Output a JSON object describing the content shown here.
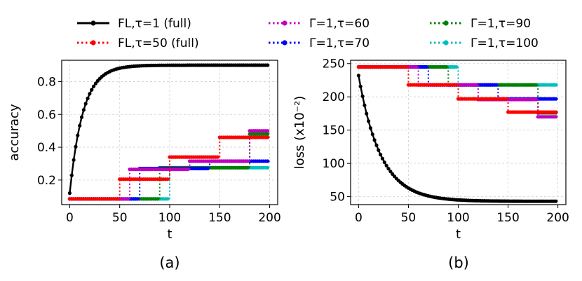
{
  "legend": [
    {
      "label": "FL,τ=1 (full)",
      "color": "#000000",
      "dash": "solid"
    },
    {
      "label": "FL,τ=50 (full)",
      "color": "#ff0000",
      "dash": "dotted"
    },
    {
      "label": "Γ=1,τ=60",
      "color": "#bf00bf",
      "dash": "dotted"
    },
    {
      "label": "Γ=1,τ=70",
      "color": "#0000ff",
      "dash": "dotted"
    },
    {
      "label": "Γ=1,τ=90",
      "color": "#007f00",
      "dash": "dotted"
    },
    {
      "label": "Γ=1,τ=100",
      "color": "#00bfbf",
      "dash": "dotted"
    }
  ],
  "chart_data": [
    {
      "type": "line",
      "caption": "(a)",
      "xlabel": "t",
      "ylabel": "accuracy",
      "xlim": [
        -8,
        208
      ],
      "ylim": [
        0.05,
        0.93
      ],
      "xticks": [
        0,
        50,
        100,
        150,
        200
      ],
      "yticks": [
        0.2,
        0.4,
        0.6,
        0.8
      ],
      "ytick_labels": [
        "0.2",
        "0.4",
        "0.6",
        "0.8"
      ],
      "grid": true,
      "series": [
        {
          "name": "FL,τ=1 (full)",
          "kind": "curve",
          "start": 0.12,
          "plateau": 0.9,
          "rate": 0.075
        },
        {
          "name": "FL,τ=50 (full)",
          "kind": "step",
          "breaks": [
            0,
            50,
            100,
            150,
            200
          ],
          "levels": [
            0.085,
            0.205,
            0.34,
            0.46
          ]
        },
        {
          "name": "Γ=1,τ=60",
          "kind": "step",
          "breaks": [
            0,
            60,
            120,
            180,
            200
          ],
          "levels": [
            0.085,
            0.265,
            0.315,
            0.5
          ]
        },
        {
          "name": "Γ=1,τ=70",
          "kind": "step",
          "breaks": [
            0,
            70,
            140,
            200
          ],
          "levels": [
            0.085,
            0.27,
            0.315
          ]
        },
        {
          "name": "Γ=1,τ=90",
          "kind": "step",
          "breaks": [
            0,
            90,
            180,
            200
          ],
          "levels": [
            0.085,
            0.275,
            0.48
          ]
        },
        {
          "name": "Γ=1,τ=100",
          "kind": "step",
          "breaks": [
            0,
            100,
            200
          ],
          "levels": [
            0.085,
            0.275
          ]
        }
      ]
    },
    {
      "type": "line",
      "caption": "(b)",
      "xlabel": "t",
      "ylabel": "loss (x10⁻²)",
      "xlim": [
        -8,
        208
      ],
      "ylim": [
        38,
        255
      ],
      "xticks": [
        0,
        50,
        100,
        150,
        200
      ],
      "yticks": [
        50,
        100,
        150,
        200,
        250
      ],
      "ytick_labels": [
        "50",
        "100",
        "150",
        "200",
        "250"
      ],
      "grid": true,
      "series": [
        {
          "name": "FL,τ=1 (full)",
          "kind": "curve",
          "start": 232,
          "plateau": 43,
          "rate": 0.045
        },
        {
          "name": "FL,τ=50 (full)",
          "kind": "step",
          "breaks": [
            0,
            50,
            100,
            150,
            200
          ],
          "levels": [
            245,
            218,
            197,
            177
          ]
        },
        {
          "name": "Γ=1,τ=60",
          "kind": "step",
          "breaks": [
            0,
            60,
            120,
            180,
            200
          ],
          "levels": [
            245,
            218,
            196,
            170
          ]
        },
        {
          "name": "Γ=1,τ=70",
          "kind": "step",
          "breaks": [
            0,
            70,
            140,
            200
          ],
          "levels": [
            245,
            218,
            197
          ]
        },
        {
          "name": "Γ=1,τ=90",
          "kind": "step",
          "breaks": [
            0,
            90,
            180,
            200
          ],
          "levels": [
            245,
            218,
            176
          ]
        },
        {
          "name": "Γ=1,τ=100",
          "kind": "step",
          "breaks": [
            0,
            100,
            200
          ],
          "levels": [
            245,
            218
          ]
        }
      ]
    }
  ]
}
